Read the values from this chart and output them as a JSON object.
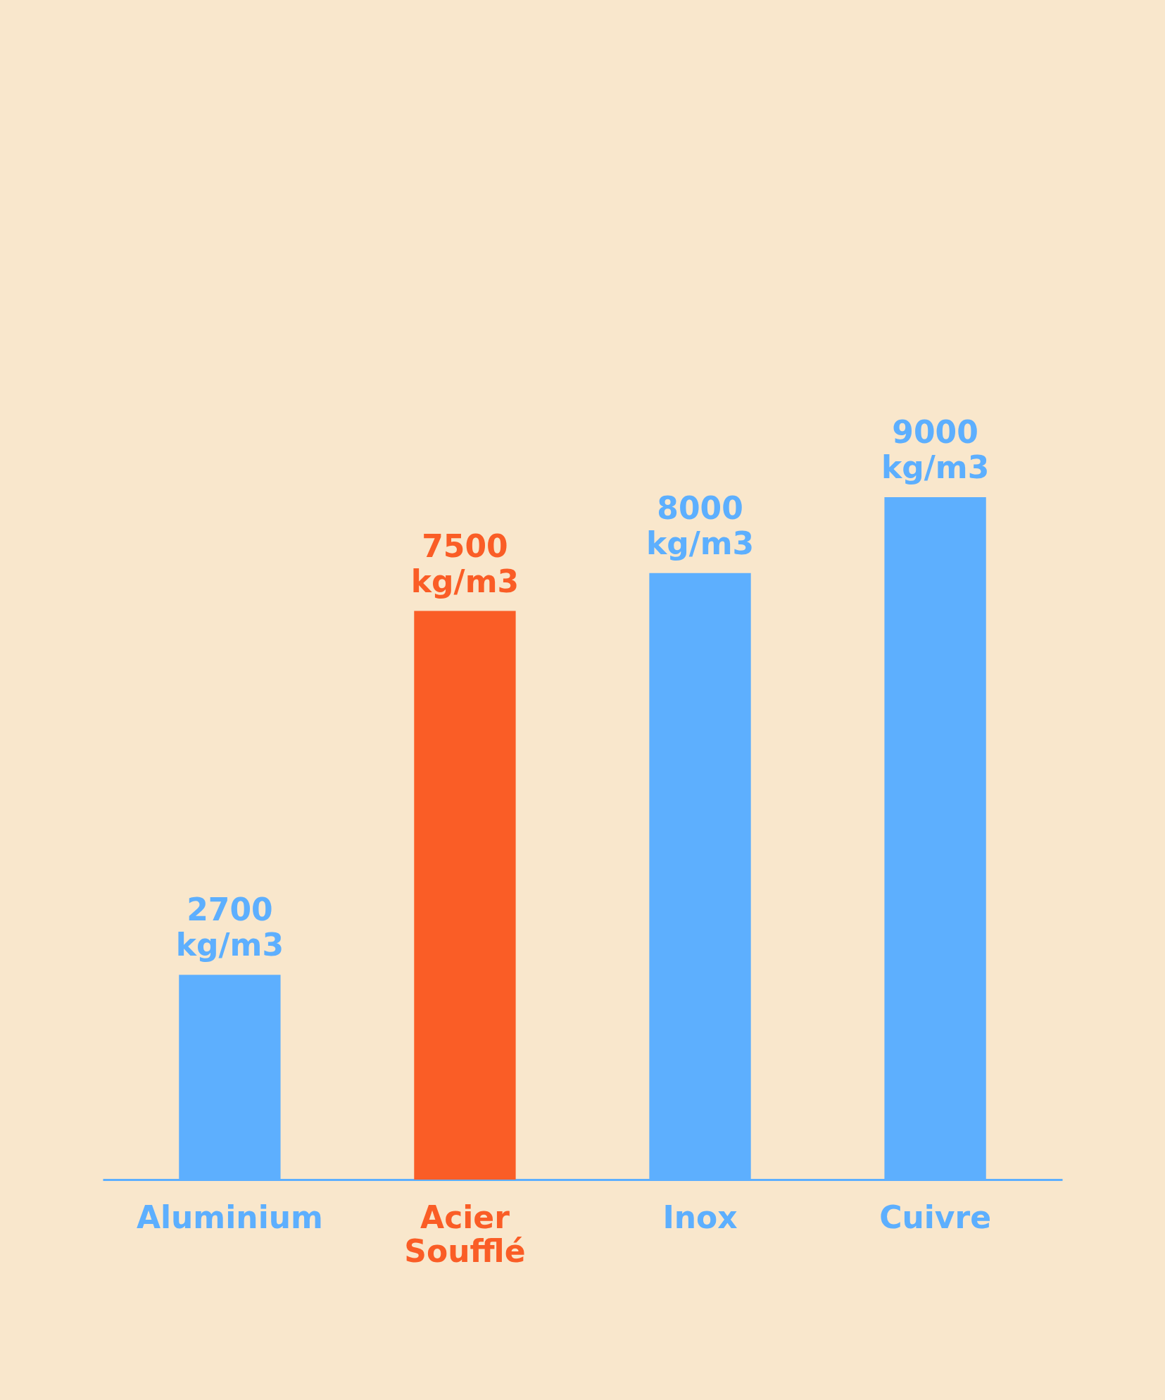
{
  "chart_data": {
    "type": "bar",
    "categories": [
      "Aluminium",
      "Acier\nSoufflé",
      "Inox",
      "Cuivre"
    ],
    "values": [
      2700,
      7500,
      8000,
      9000
    ],
    "colors": [
      "#5daffe",
      "#fa5d26",
      "#5daffe",
      "#5daffe"
    ],
    "value_labels": [
      "2700\nkg/m3",
      "7500\nkg/m3",
      "8000\nkg/m3",
      "9000\nkg/m3"
    ]
  }
}
